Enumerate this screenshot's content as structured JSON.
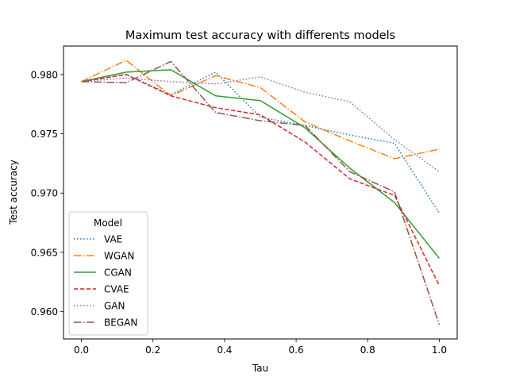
{
  "chart_data": {
    "type": "line",
    "title": "Maximum test accuracy with differents models",
    "xlabel": "Tau",
    "ylabel": "Test accuracy",
    "xlim": [
      -0.05,
      1.05
    ],
    "ylim": [
      0.9577,
      0.9824
    ],
    "xticks": [
      0.0,
      0.2,
      0.4,
      0.6,
      0.8,
      1.0
    ],
    "xtick_labels": [
      "0.0",
      "0.2",
      "0.4",
      "0.6",
      "0.8",
      "1.0"
    ],
    "yticks": [
      0.96,
      0.965,
      0.97,
      0.975,
      0.98
    ],
    "ytick_labels": [
      "0.960",
      "0.965",
      "0.970",
      "0.975",
      "0.980"
    ],
    "grid": false,
    "legend": {
      "title": "Model",
      "placement": "lower-left"
    },
    "x": [
      0.0,
      0.125,
      0.25,
      0.375,
      0.5,
      0.625,
      0.75,
      0.875,
      1.0
    ],
    "series": [
      {
        "name": "VAE",
        "color": "#1f77b4",
        "style": "dotted",
        "values": [
          0.9794,
          0.98,
          0.9783,
          0.9802,
          0.9764,
          0.9757,
          0.9749,
          0.9742,
          0.9683
        ]
      },
      {
        "name": "WGAN",
        "color": "#ff7f0e",
        "style": "dashdot",
        "values": [
          0.9794,
          0.9812,
          0.9782,
          0.9799,
          0.9789,
          0.976,
          0.9744,
          0.9729,
          0.9737
        ]
      },
      {
        "name": "CGAN",
        "color": "#2ca02c",
        "style": "solid",
        "values": [
          0.9794,
          0.9802,
          0.9804,
          0.9782,
          0.9778,
          0.9755,
          0.9721,
          0.9692,
          0.9645
        ]
      },
      {
        "name": "CVAE",
        "color": "#d62728",
        "style": "dashed",
        "values": [
          0.9794,
          0.98,
          0.9782,
          0.9772,
          0.9766,
          0.9743,
          0.9712,
          0.9698,
          0.9622
        ]
      },
      {
        "name": "GAN",
        "color": "#9467bd",
        "style": "dotted",
        "values": [
          0.9794,
          0.9797,
          0.9794,
          0.9792,
          0.9798,
          0.9785,
          0.9777,
          0.9745,
          0.9718
        ]
      },
      {
        "name": "BEGAN",
        "color": "#8c564b",
        "style": "dashdot",
        "values": [
          0.9794,
          0.9793,
          0.9811,
          0.9768,
          0.9761,
          0.9757,
          0.9718,
          0.9701,
          0.9589
        ]
      }
    ]
  }
}
